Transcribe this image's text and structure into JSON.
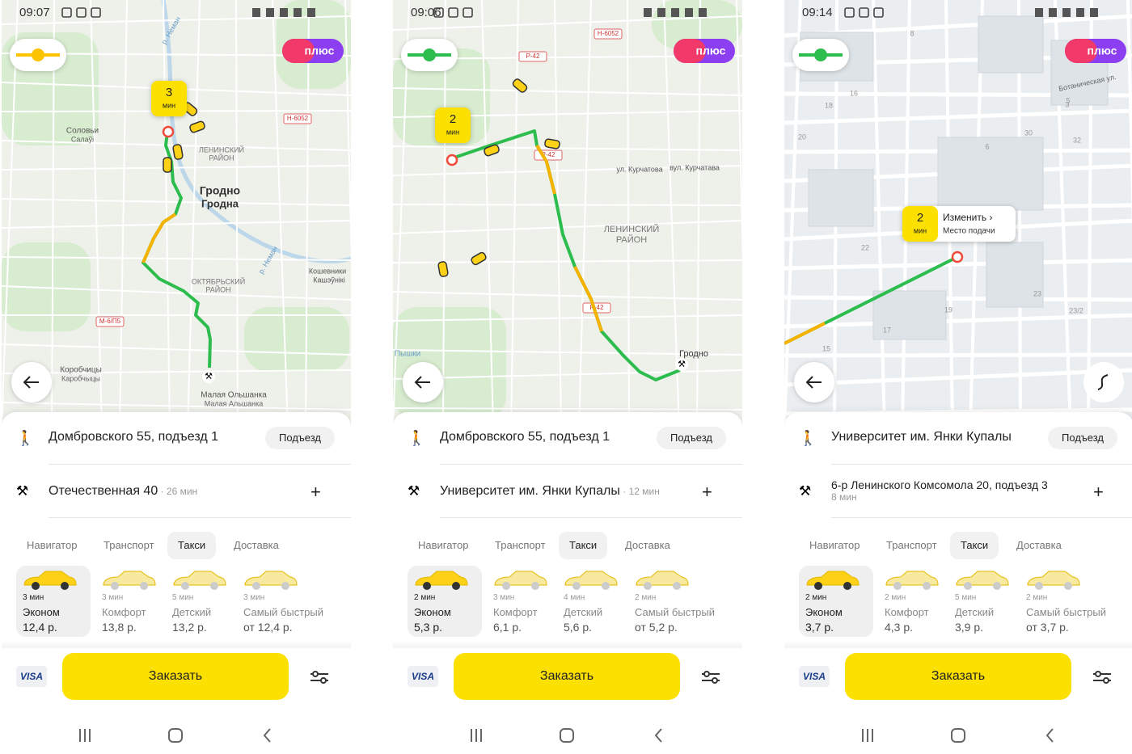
{
  "screens": [
    {
      "time": "09:07",
      "plus": "плюс",
      "eta": {
        "value": "3",
        "unit": "мин"
      },
      "map_labels": [
        "Соловьи",
        "Салаўі",
        "ЛЕНИНСКИЙ",
        "РАЙОН",
        "Гродно",
        "Гродна",
        "Н-6052",
        "р. Неман",
        "ОКТЯБРЬСКИЙ",
        "РАЙОН",
        "Кошевники",
        "Кашэўнікі",
        "М-6/П5",
        "Коробчицы",
        "Каробчыцы",
        "Малая Ольшанка",
        "Малая Альшанка",
        "р. Неман"
      ],
      "pickup": "Домбровского 55, подъезд 1",
      "pickup_button": "Подъезд",
      "destination": "Отечественная 40",
      "destination_eta": "26 мин",
      "tabs": [
        "Навигатор",
        "Транспорт",
        "Такси",
        "Доставка"
      ],
      "active_tab": 2,
      "tariffs": [
        {
          "eta": "3 мин",
          "name": "Эконом",
          "price": "12,4 р."
        },
        {
          "eta": "3 мин",
          "name": "Комфорт",
          "price": "13,8 р."
        },
        {
          "eta": "5 мин",
          "name": "Детский",
          "price": "13,2 р."
        },
        {
          "eta": "3 мин",
          "name": "Самый быстрый",
          "price": "от 12,4 р."
        }
      ],
      "order": "Заказать",
      "payment": "VISA"
    },
    {
      "time": "09:06",
      "plus": "плюс",
      "eta": {
        "value": "2",
        "unit": "мин"
      },
      "map_labels": [
        "Н-6052",
        "Р-42",
        "Р-42",
        "ул. Курчатова",
        "вул. Курчатава",
        "ЛЕНИНСКИЙ",
        "РАЙОН",
        "Пышки",
        "Р-42",
        "Гродно"
      ],
      "pickup": "Домбровского 55, подъезд 1",
      "pickup_button": "Подъезд",
      "destination": "Университет им. Янки Купалы",
      "destination_eta": "12 мин",
      "tabs": [
        "Навигатор",
        "Транспорт",
        "Такси",
        "Доставка"
      ],
      "active_tab": 2,
      "tariffs": [
        {
          "eta": "2 мин",
          "name": "Эконом",
          "price": "5,3 р."
        },
        {
          "eta": "3 мин",
          "name": "Комфорт",
          "price": "6,1 р."
        },
        {
          "eta": "4 мин",
          "name": "Детский",
          "price": "5,6 р."
        },
        {
          "eta": "2 мин",
          "name": "Самый быстрый",
          "price": "от 5,2 р."
        }
      ],
      "order": "Заказать",
      "payment": "VISA"
    },
    {
      "time": "09:14",
      "plus": "плюс",
      "eta": {
        "value": "2",
        "unit": "мин"
      },
      "callout": {
        "title": "Изменить ›",
        "subtitle": "Место подачи"
      },
      "map_labels": [
        "8",
        "16",
        "18",
        "20",
        "5",
        "3",
        "30",
        "32",
        "6",
        "22",
        "Ботаническая ул.",
        "23",
        "19",
        "17",
        "15",
        "23/2"
      ],
      "pickup": "Университет им. Янки Купалы",
      "pickup_button": "Подъезд",
      "destination": "6-р Ленинского Комсомола 20, подъезд 3",
      "destination_eta": "8 мин",
      "tabs": [
        "Навигатор",
        "Транспорт",
        "Такси",
        "Доставка"
      ],
      "active_tab": 2,
      "tariffs": [
        {
          "eta": "2 мин",
          "name": "Эконом",
          "price": "3,7 р."
        },
        {
          "eta": "2 мин",
          "name": "Комфорт",
          "price": "4,3 р."
        },
        {
          "eta": "5 мин",
          "name": "Детский",
          "price": "3,9 р."
        },
        {
          "eta": "2 мин",
          "name": "Самый быстрый",
          "price": "от 3,7 р."
        }
      ],
      "order": "Заказать",
      "payment": "VISA"
    }
  ]
}
